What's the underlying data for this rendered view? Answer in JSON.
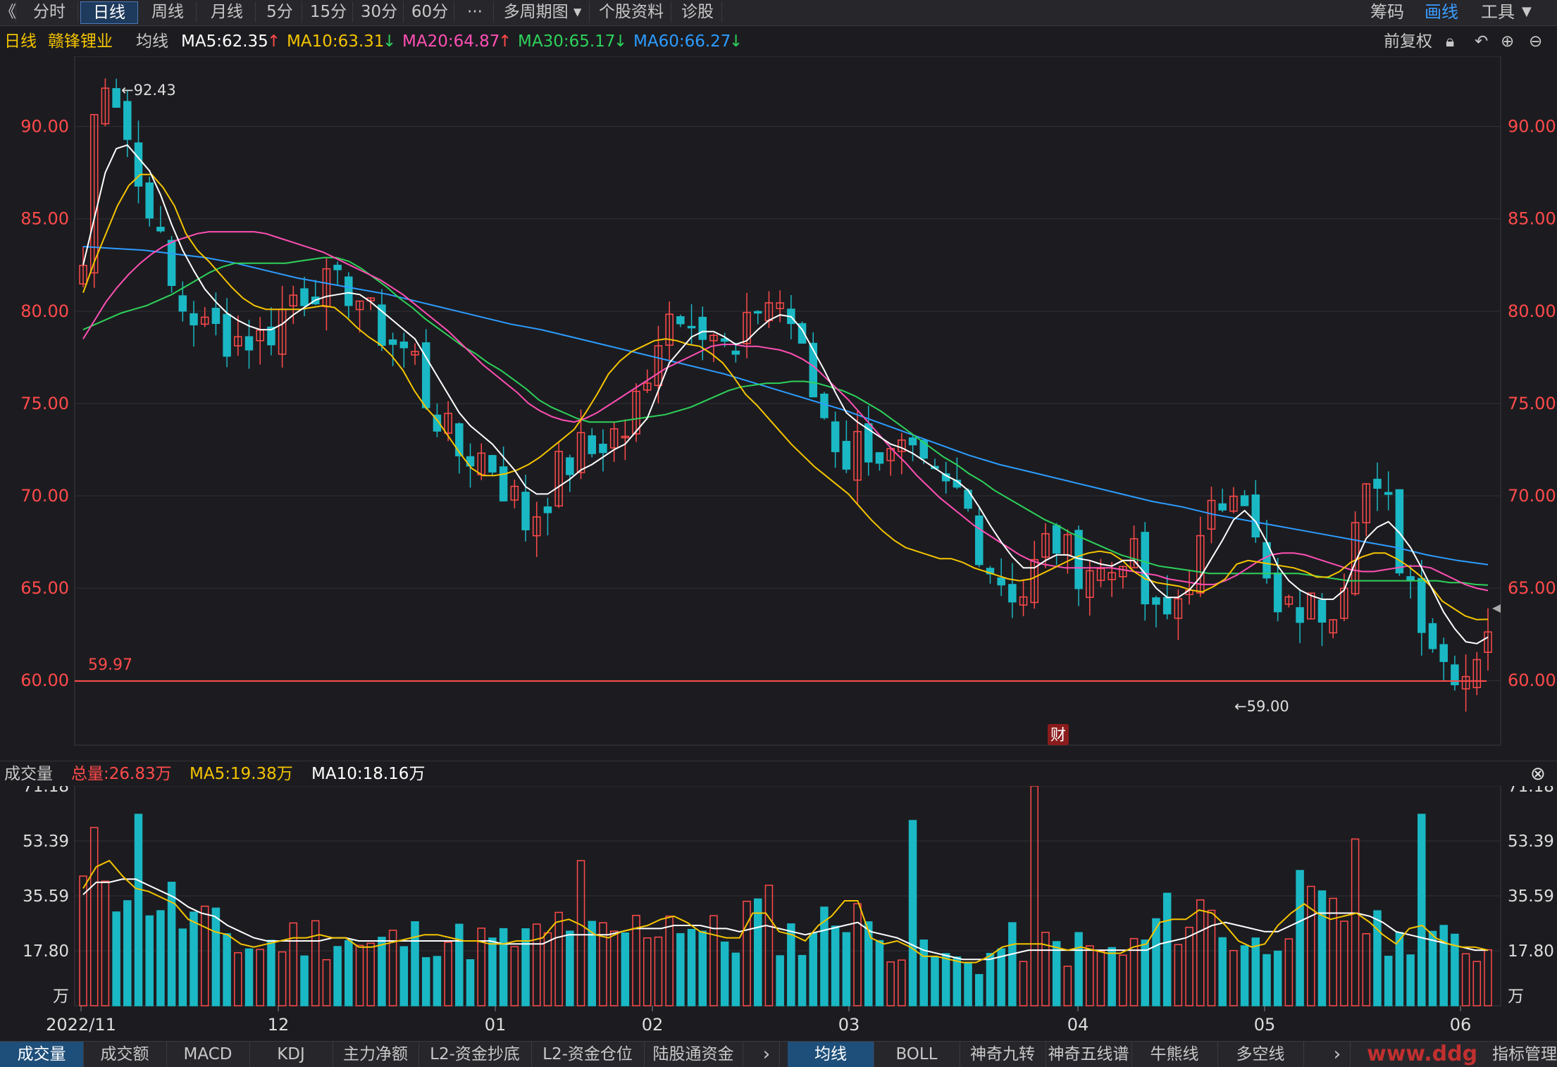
{
  "toolbar": {
    "back_label": "《",
    "tabs": [
      "分时",
      "日线",
      "周线",
      "月线",
      "5分",
      "15分",
      "30分",
      "60分",
      "···",
      "多周期图",
      "个股资料",
      "诊股"
    ],
    "active_tab": "日线",
    "right": {
      "chip": "筹码",
      "draw": "画线",
      "tools": "工具"
    }
  },
  "info": {
    "period": "日线",
    "name": "赣锋锂业",
    "ma_label": "均线",
    "ma5": "MA5:62.35",
    "ma10": "MA10:63.31",
    "ma20": "MA20:64.87",
    "ma30": "MA30:65.17",
    "ma60": "MA60:66.27",
    "adjust": "前复权",
    "colors": {
      "ma5": "#ffffff",
      "ma10": "#f5c400",
      "ma20": "#ff4fb4",
      "ma30": "#2ed15a",
      "ma60": "#2d9cff",
      "up": "#ff4a4a",
      "down": "#1ab8c4"
    }
  },
  "volume_info": {
    "title": "成交量",
    "total": "总量:26.83万",
    "ma5": "MA5:19.38万",
    "ma10": "MA10:18.16万"
  },
  "bottom_tabs_left": [
    "成交量",
    "成交额",
    "MACD",
    "KDJ",
    "主力净额",
    "L2-资金抄底",
    "L2-资金仓位",
    "陆股通资金"
  ],
  "bottom_tabs_right": [
    "均线",
    "BOLL",
    "神奇九转",
    "神奇五线谱",
    "牛熊线",
    "多空线"
  ],
  "bottom_extra": "指标管理",
  "watermark": "www.ddg",
  "chart_data": [
    {
      "type": "candlestick",
      "y_ticks": [
        "90.00",
        "85.00",
        "80.00",
        "75.00",
        "70.00",
        "65.00",
        "60.00"
      ],
      "ylim": [
        56.5,
        93.8
      ],
      "x_labels": [
        "2022/11",
        "12",
        "01",
        "02",
        "03",
        "04",
        "05",
        "06"
      ],
      "annotations": {
        "high": "←92.43",
        "low": "←59.00",
        "line": "59.97",
        "marker": "财"
      },
      "support_line": 59.97,
      "ma5": [
        82.5,
        85,
        87.5,
        88.8,
        89,
        88.3,
        87.6,
        86.3,
        84.7,
        83.3,
        82.2,
        81.2,
        80.5,
        79.9,
        79.5,
        79.2,
        79,
        79,
        79.3,
        79.8,
        80.2,
        80.6,
        80.8,
        80.9,
        81,
        80.9,
        80.5,
        80,
        79.5,
        79,
        78.5,
        77.5,
        76.5,
        75.5,
        74.5,
        73.8,
        73.3,
        72.8,
        72.1,
        71.4,
        70.5,
        70.1,
        70.1,
        70.5,
        70.9,
        71.4,
        71.7,
        72.1,
        72.5,
        72.8,
        73.5,
        74.2,
        75.7,
        77.2,
        77.9,
        78.6,
        78.9,
        78.9,
        78.6,
        78.2,
        78.4,
        79,
        79.5,
        79.8,
        79.7,
        79,
        77.9,
        76.8,
        75.6,
        74.5,
        74,
        73.6,
        73.2,
        72.8,
        72.6,
        72.3,
        71.9,
        71.5,
        71.1,
        70.8,
        70.3,
        69.4,
        68.4,
        67.5,
        66.7,
        66.1,
        66.1,
        66.5,
        66.8,
        66.8,
        66.6,
        66.5,
        66.3,
        66.2,
        66.5,
        66.5,
        65.8,
        65,
        64.5,
        64.5,
        64.9,
        65.6,
        66.6,
        67.6,
        68.7,
        69.2,
        68.6,
        67.5,
        66.2,
        65.4,
        64.9,
        64.6,
        64.4,
        64.4,
        64.9,
        66.4,
        67.7,
        68.3,
        68.6,
        68,
        67.2,
        66.1,
        64.9,
        63.7,
        62.8,
        62.1,
        62,
        62.35
      ],
      "ma10": [
        81,
        82.7,
        84.2,
        85.7,
        86.8,
        87.4,
        87.4,
        86.7,
        85.7,
        84.2,
        83.3,
        82.7,
        82,
        81.3,
        80.7,
        80.3,
        80.1,
        80.1,
        80.1,
        80.1,
        80.2,
        80.3,
        80.2,
        79.7,
        79.1,
        78.6,
        78.2,
        77.6,
        76.8,
        75.7,
        74.8,
        74.1,
        73.2,
        72.3,
        71.5,
        71.1,
        71.1,
        71.2,
        71.4,
        71.7,
        72.1,
        72.6,
        73.1,
        73.6,
        74.5,
        75.5,
        76.6,
        77.3,
        77.8,
        78.1,
        78.4,
        78.5,
        78.4,
        78.2,
        78.1,
        77.7,
        77.2,
        76.4,
        75.5,
        74.9,
        74.2,
        73.5,
        72.8,
        72.2,
        71.6,
        71.1,
        70.6,
        70.1,
        69.4,
        68.7,
        68.1,
        67.6,
        67.2,
        67,
        66.8,
        66.6,
        66.6,
        66.4,
        66.1,
        65.9,
        65.7,
        65.5,
        65.4,
        65.5,
        65.8,
        66.1,
        66.4,
        66.7,
        66.9,
        67,
        66.9,
        66.5,
        65.9,
        65.5,
        65.3,
        65.2,
        65.1,
        64.9,
        64.8,
        65.1,
        65.5,
        66.3,
        66.5,
        66.4,
        66.3,
        66.2,
        66.1,
        65.9,
        65.6,
        65.6,
        65.9,
        66.4,
        66.7,
        66.9,
        66.9,
        66.6,
        66.2,
        65.7,
        65.1,
        64.3,
        63.9,
        63.5,
        63.3,
        63.31
      ],
      "ma20": [
        78.5,
        79.5,
        80.5,
        81.3,
        82,
        82.6,
        83.1,
        83.5,
        83.8,
        84,
        84.2,
        84.3,
        84.3,
        84.3,
        84.3,
        84.3,
        84.2,
        84,
        83.8,
        83.6,
        83.4,
        83.2,
        82.9,
        82.6,
        82.3,
        82,
        81.7,
        81.3,
        80.9,
        80.4,
        79.9,
        79.4,
        78.9,
        78.3,
        77.7,
        77.1,
        76.6,
        76.1,
        75.6,
        75,
        74.6,
        74.3,
        74.1,
        74,
        74.2,
        74.5,
        74.9,
        75.3,
        75.7,
        76.1,
        76.5,
        76.9,
        77.2,
        77.5,
        77.8,
        78.1,
        78.2,
        78.2,
        78.1,
        78.1,
        78,
        77.9,
        77.7,
        77.4,
        77,
        76.4,
        75.8,
        75.2,
        74.5,
        73.8,
        73.1,
        72.4,
        71.8,
        71.1,
        70.5,
        69.9,
        69.4,
        68.9,
        68.4,
        68,
        67.6,
        67.2,
        66.8,
        66.5,
        66.3,
        66.2,
        66.1,
        66.1,
        66.1,
        66.1,
        66.1,
        66,
        65.9,
        65.8,
        65.7,
        65.5,
        65.4,
        65.3,
        65.2,
        65.2,
        65.4,
        65.7,
        66.1,
        66.5,
        66.8,
        66.9,
        66.9,
        66.8,
        66.6,
        66.4,
        66.2,
        66,
        65.9,
        65.9,
        66,
        66.1,
        66.2,
        66.2,
        66.1,
        65.8,
        65.5,
        65.2,
        65,
        64.87
      ],
      "ma30": [
        79,
        79.3,
        79.6,
        79.9,
        80.1,
        80.3,
        80.6,
        80.9,
        81.3,
        81.7,
        82.1,
        82.4,
        82.6,
        82.6,
        82.6,
        82.6,
        82.6,
        82.7,
        82.8,
        82.9,
        82.9,
        82.7,
        82.3,
        81.8,
        81.3,
        80.7,
        80.2,
        79.6,
        79.1,
        78.6,
        78.1,
        77.7,
        77.2,
        76.8,
        76.3,
        75.8,
        75.2,
        74.8,
        74.5,
        74.2,
        74,
        74,
        74,
        74.1,
        74.2,
        74.3,
        74.4,
        74.6,
        74.8,
        75.1,
        75.4,
        75.7,
        75.9,
        76,
        76.1,
        76.1,
        76.2,
        76.2,
        76.1,
        75.9,
        75.7,
        75.4,
        75,
        74.6,
        74.1,
        73.6,
        73.1,
        72.6,
        72.1,
        71.7,
        71.2,
        70.8,
        70.3,
        69.9,
        69.5,
        69.1,
        68.7,
        68.4,
        68,
        67.7,
        67.4,
        67.1,
        66.8,
        66.6,
        66.4,
        66.2,
        66.1,
        66,
        65.9,
        65.8,
        65.8,
        65.8,
        65.8,
        65.8,
        65.8,
        65.8,
        65.8,
        65.7,
        65.6,
        65.5,
        65.4,
        65.4,
        65.4,
        65.4,
        65.4,
        65.4,
        65.4,
        65.4,
        65.3,
        65.3,
        65.2,
        65.17
      ],
      "ma60": [
        83.5,
        83.4,
        83.3,
        83.1,
        82.9,
        82.6,
        82.2,
        81.8,
        81.5,
        81.2,
        80.9,
        80.5,
        80.1,
        79.7,
        79.3,
        79,
        78.6,
        78.2,
        77.8,
        77.4,
        77,
        76.6,
        76.1,
        75.6,
        75.1,
        74.6,
        74,
        73.4,
        72.8,
        72.2,
        71.7,
        71.3,
        70.9,
        70.5,
        70.1,
        69.7,
        69.4,
        69,
        68.7,
        68.4,
        68.1,
        67.8,
        67.5,
        67.2,
        66.8,
        66.5,
        66.27
      ],
      "volume": {
        "y_ticks": [
          "71.18",
          "53.39",
          "35.59",
          "17.80",
          "万"
        ],
        "ylim": [
          0,
          71.18
        ],
        "ma5": [
          38,
          45,
          47,
          42,
          38,
          37,
          35,
          33,
          28,
          26,
          24,
          23,
          20,
          19,
          20,
          21,
          22,
          22,
          23,
          22,
          22,
          19,
          19,
          20,
          21,
          22,
          23,
          23,
          22,
          21,
          21,
          20,
          20,
          21,
          21,
          22,
          27,
          28,
          26,
          23,
          22,
          24,
          25,
          26,
          28,
          29,
          27,
          24,
          23,
          22,
          22,
          30,
          30,
          24,
          23,
          21,
          26,
          29,
          34,
          34,
          22,
          20,
          21,
          19,
          16,
          16,
          15,
          14,
          14,
          16,
          19,
          20,
          20,
          20,
          19,
          18,
          19,
          18,
          17,
          17,
          19,
          20,
          27,
          28,
          28,
          31,
          30,
          26,
          21,
          19,
          20,
          26,
          30,
          33,
          30,
          28,
          29,
          30,
          27,
          23,
          20,
          25,
          26,
          22,
          20,
          19,
          19,
          18
        ],
        "ma10": [
          36,
          40,
          40,
          41,
          41,
          39,
          37,
          35,
          32,
          30,
          29,
          26,
          24,
          22,
          21,
          21,
          21,
          21,
          21,
          22,
          22,
          21,
          21,
          21,
          21,
          21,
          21,
          21,
          21,
          21,
          21,
          21,
          20,
          20,
          20,
          20,
          22,
          23,
          23,
          23,
          23,
          24,
          25,
          25,
          25,
          26,
          26,
          26,
          25,
          25,
          24,
          25,
          26,
          25,
          24,
          23,
          24,
          25,
          26,
          27,
          24,
          23,
          22,
          20,
          18,
          17,
          16,
          15,
          15,
          15,
          16,
          17,
          18,
          18,
          18,
          18,
          18,
          18,
          18,
          18,
          18,
          18,
          20,
          21,
          22,
          24,
          26,
          27,
          26,
          25,
          24,
          24,
          26,
          28,
          30,
          30,
          30,
          30,
          29,
          27,
          24,
          23,
          22,
          21,
          20,
          19,
          18,
          18
        ]
      }
    }
  ]
}
